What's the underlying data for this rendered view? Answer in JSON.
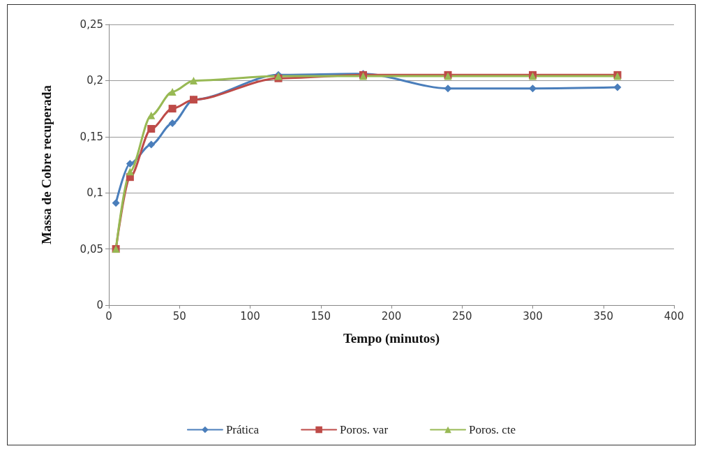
{
  "chart_data": {
    "type": "line",
    "xlabel": "Tempo (minutos)",
    "ylabel": "Massa de Cobre recuperada",
    "x": [
      5,
      15,
      30,
      45,
      60,
      120,
      180,
      240,
      300,
      360
    ],
    "series": [
      {
        "name": "Prática",
        "color": "#4a7ebb",
        "marker": "diamond",
        "values": [
          0.091,
          0.126,
          0.143,
          0.162,
          0.183,
          0.205,
          0.206,
          0.193,
          0.193,
          0.194
        ]
      },
      {
        "name": "Poros. var",
        "color": "#be4b48",
        "marker": "square",
        "values": [
          0.05,
          0.114,
          0.157,
          0.175,
          0.183,
          0.202,
          0.205,
          0.205,
          0.205,
          0.205
        ]
      },
      {
        "name": "Poros. cte",
        "color": "#98b954",
        "marker": "triangle",
        "values": [
          0.05,
          0.119,
          0.169,
          0.19,
          0.2,
          0.204,
          0.204,
          0.204,
          0.204,
          0.204
        ]
      }
    ],
    "xlim": [
      0,
      400
    ],
    "xticks": [
      0,
      50,
      100,
      150,
      200,
      250,
      300,
      350,
      400
    ],
    "ylim": [
      0,
      0.25
    ],
    "yticks": [
      0,
      {
        "value": 0.05,
        "label": "0,05"
      },
      {
        "value": 0.1,
        "label": "0,1"
      },
      {
        "value": 0.15,
        "label": "0,15"
      },
      {
        "value": 0.2,
        "label": "0,2"
      },
      {
        "value": 0.25,
        "label": "0,25"
      }
    ],
    "grid": "y",
    "legend": "bottom",
    "line_style": "solid"
  }
}
